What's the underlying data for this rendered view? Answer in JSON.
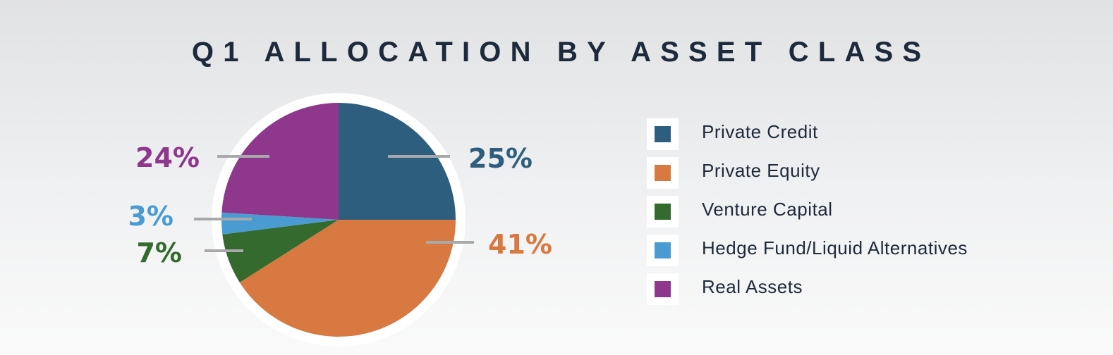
{
  "chart_data": {
    "type": "pie",
    "title": "Q1 ALLOCATION BY ASSET CLASS",
    "slices": [
      {
        "label": "Private Credit",
        "value": 25,
        "display": "25%",
        "color": "#2e5e7e"
      },
      {
        "label": "Private Equity",
        "value": 41,
        "display": "41%",
        "color": "#d97942"
      },
      {
        "label": "Venture Capital",
        "value": 7,
        "display": "7%",
        "color": "#346a2e"
      },
      {
        "label": "Hedge Fund/Liquid Alternatives",
        "value": 3,
        "display": "3%",
        "color": "#4a9bd1"
      },
      {
        "label": "Real Assets",
        "value": 24,
        "display": "24%",
        "color": "#8f368d"
      }
    ],
    "start_angle": "12 o'clock",
    "direction": "clockwise",
    "legend_position": "right"
  }
}
